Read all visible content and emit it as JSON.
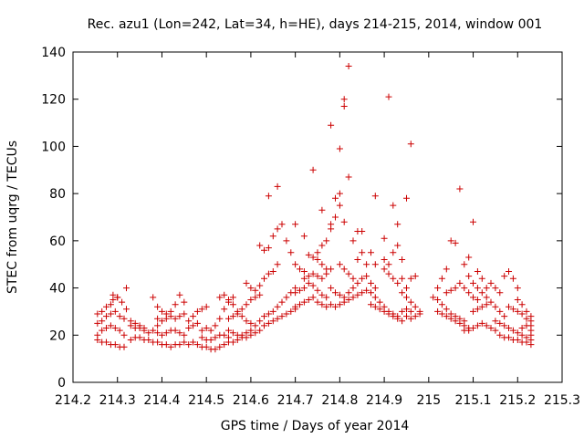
{
  "chart_data": {
    "type": "scatter",
    "title": "Rec. azu1 (Lon=242, Lat=34, h=HE), days 214-215, 2014, window 001",
    "xlabel": "GPS time / Days of year 2014",
    "ylabel": "STEC from uqrg / TECUs",
    "xlim": [
      214.2,
      215.3
    ],
    "ylim": [
      0,
      140
    ],
    "xticks": [
      214.2,
      214.3,
      214.4,
      214.5,
      214.6,
      214.7,
      214.8,
      214.9,
      215,
      215.1,
      215.2,
      215.3
    ],
    "xtick_labels": [
      "214.2",
      "214.3",
      "214.4",
      "214.5",
      "214.6",
      "214.7",
      "214.8",
      "214.9",
      "215",
      "215.1",
      "215.2",
      "215.3"
    ],
    "yticks": [
      0,
      20,
      40,
      60,
      80,
      100,
      120,
      140
    ],
    "ytick_labels": [
      "0",
      "20",
      "40",
      "60",
      "80",
      "100",
      "120",
      "140"
    ],
    "grid": false,
    "marker": "+",
    "color": "#cc0000",
    "points": [
      [
        214.255,
        29
      ],
      [
        214.265,
        30
      ],
      [
        214.275,
        32
      ],
      [
        214.285,
        33
      ],
      [
        214.29,
        35
      ],
      [
        214.3,
        36
      ],
      [
        214.31,
        34
      ],
      [
        214.32,
        31
      ],
      [
        214.255,
        25
      ],
      [
        214.265,
        26
      ],
      [
        214.275,
        28
      ],
      [
        214.285,
        29
      ],
      [
        214.295,
        30
      ],
      [
        214.305,
        28
      ],
      [
        214.315,
        27
      ],
      [
        214.255,
        20
      ],
      [
        214.265,
        22
      ],
      [
        214.275,
        23
      ],
      [
        214.285,
        24
      ],
      [
        214.295,
        23
      ],
      [
        214.305,
        22
      ],
      [
        214.315,
        20
      ],
      [
        214.255,
        18
      ],
      [
        214.265,
        17
      ],
      [
        214.275,
        17
      ],
      [
        214.285,
        16
      ],
      [
        214.295,
        16
      ],
      [
        214.305,
        15
      ],
      [
        214.315,
        15
      ],
      [
        214.32,
        40
      ],
      [
        214.29,
        37
      ],
      [
        214.3,
        36
      ],
      [
        214.33,
        24
      ],
      [
        214.34,
        23
      ],
      [
        214.35,
        23
      ],
      [
        214.36,
        22
      ],
      [
        214.37,
        21
      ],
      [
        214.38,
        22
      ],
      [
        214.39,
        24
      ],
      [
        214.33,
        18
      ],
      [
        214.34,
        19
      ],
      [
        214.35,
        19
      ],
      [
        214.36,
        18
      ],
      [
        214.37,
        18
      ],
      [
        214.38,
        17
      ],
      [
        214.39,
        17
      ],
      [
        214.33,
        26
      ],
      [
        214.34,
        25
      ],
      [
        214.35,
        24
      ],
      [
        214.36,
        23
      ],
      [
        214.38,
        36
      ],
      [
        214.39,
        32
      ],
      [
        214.4,
        30
      ],
      [
        214.41,
        29
      ],
      [
        214.42,
        30
      ],
      [
        214.43,
        33
      ],
      [
        214.44,
        37
      ],
      [
        214.45,
        34
      ],
      [
        214.39,
        27
      ],
      [
        214.4,
        26
      ],
      [
        214.41,
        27
      ],
      [
        214.42,
        28
      ],
      [
        214.43,
        27
      ],
      [
        214.44,
        28
      ],
      [
        214.45,
        29
      ],
      [
        214.39,
        21
      ],
      [
        214.4,
        20
      ],
      [
        214.41,
        21
      ],
      [
        214.42,
        22
      ],
      [
        214.43,
        22
      ],
      [
        214.44,
        21
      ],
      [
        214.45,
        20
      ],
      [
        214.4,
        16
      ],
      [
        214.41,
        16
      ],
      [
        214.42,
        15
      ],
      [
        214.43,
        16
      ],
      [
        214.44,
        16
      ],
      [
        214.45,
        17
      ],
      [
        214.46,
        16
      ],
      [
        214.46,
        26
      ],
      [
        214.47,
        28
      ],
      [
        214.48,
        30
      ],
      [
        214.49,
        31
      ],
      [
        214.5,
        32
      ],
      [
        214.46,
        23
      ],
      [
        214.47,
        24
      ],
      [
        214.48,
        25
      ],
      [
        214.49,
        22
      ],
      [
        214.5,
        23
      ],
      [
        214.51,
        22
      ],
      [
        214.52,
        24
      ],
      [
        214.53,
        27
      ],
      [
        214.54,
        31
      ],
      [
        214.55,
        34
      ],
      [
        214.56,
        36
      ],
      [
        214.47,
        17
      ],
      [
        214.48,
        16
      ],
      [
        214.49,
        15
      ],
      [
        214.5,
        15
      ],
      [
        214.51,
        14
      ],
      [
        214.52,
        14
      ],
      [
        214.53,
        15
      ],
      [
        214.54,
        16
      ],
      [
        214.49,
        19
      ],
      [
        214.5,
        18
      ],
      [
        214.51,
        18
      ],
      [
        214.52,
        19
      ],
      [
        214.53,
        20
      ],
      [
        214.54,
        20
      ],
      [
        214.55,
        19
      ],
      [
        214.53,
        36
      ],
      [
        214.54,
        37
      ],
      [
        214.55,
        35
      ],
      [
        214.56,
        33
      ],
      [
        214.57,
        30
      ],
      [
        214.58,
        28
      ],
      [
        214.59,
        26
      ],
      [
        214.6,
        25
      ],
      [
        214.55,
        27
      ],
      [
        214.56,
        28
      ],
      [
        214.57,
        29
      ],
      [
        214.58,
        31
      ],
      [
        214.59,
        33
      ],
      [
        214.6,
        35
      ],
      [
        214.61,
        36
      ],
      [
        214.62,
        37
      ],
      [
        214.55,
        22
      ],
      [
        214.56,
        21
      ],
      [
        214.57,
        20
      ],
      [
        214.58,
        20
      ],
      [
        214.59,
        21
      ],
      [
        214.6,
        22
      ],
      [
        214.61,
        24
      ],
      [
        214.62,
        26
      ],
      [
        214.55,
        17
      ],
      [
        214.56,
        17
      ],
      [
        214.57,
        18
      ],
      [
        214.58,
        19
      ],
      [
        214.59,
        19
      ],
      [
        214.6,
        20
      ],
      [
        214.61,
        21
      ],
      [
        214.62,
        22
      ],
      [
        214.59,
        42
      ],
      [
        214.6,
        40
      ],
      [
        214.61,
        39
      ],
      [
        214.62,
        41
      ],
      [
        214.63,
        44
      ],
      [
        214.64,
        46
      ],
      [
        214.65,
        47
      ],
      [
        214.66,
        50
      ],
      [
        214.63,
        28
      ],
      [
        214.64,
        29
      ],
      [
        214.65,
        30
      ],
      [
        214.66,
        32
      ],
      [
        214.67,
        34
      ],
      [
        214.68,
        36
      ],
      [
        214.69,
        38
      ],
      [
        214.7,
        40
      ],
      [
        214.63,
        24
      ],
      [
        214.64,
        25
      ],
      [
        214.65,
        26
      ],
      [
        214.66,
        27
      ],
      [
        214.67,
        28
      ],
      [
        214.68,
        29
      ],
      [
        214.69,
        30
      ],
      [
        214.7,
        31
      ],
      [
        214.62,
        58
      ],
      [
        214.63,
        56
      ],
      [
        214.64,
        57
      ],
      [
        214.65,
        62
      ],
      [
        214.66,
        65
      ],
      [
        214.67,
        67
      ],
      [
        214.68,
        60
      ],
      [
        214.69,
        55
      ],
      [
        214.64,
        79
      ],
      [
        214.66,
        83
      ],
      [
        214.7,
        67
      ],
      [
        214.72,
        62
      ],
      [
        214.74,
        90
      ],
      [
        214.76,
        73
      ],
      [
        214.78,
        109
      ],
      [
        214.7,
        50
      ],
      [
        214.71,
        48
      ],
      [
        214.72,
        47
      ],
      [
        214.73,
        54
      ],
      [
        214.74,
        53
      ],
      [
        214.75,
        52
      ],
      [
        214.76,
        50
      ],
      [
        214.77,
        48
      ],
      [
        214.7,
        38
      ],
      [
        214.71,
        39
      ],
      [
        214.72,
        40
      ],
      [
        214.73,
        42
      ],
      [
        214.74,
        41
      ],
      [
        214.75,
        39
      ],
      [
        214.76,
        37
      ],
      [
        214.77,
        36
      ],
      [
        214.7,
        32
      ],
      [
        214.71,
        33
      ],
      [
        214.72,
        34
      ],
      [
        214.73,
        35
      ],
      [
        214.74,
        36
      ],
      [
        214.75,
        34
      ],
      [
        214.76,
        33
      ],
      [
        214.77,
        32
      ],
      [
        214.72,
        44
      ],
      [
        214.73,
        45
      ],
      [
        214.74,
        46
      ],
      [
        214.75,
        45
      ],
      [
        214.76,
        44
      ],
      [
        214.77,
        46
      ],
      [
        214.78,
        48
      ],
      [
        214.75,
        55
      ],
      [
        214.76,
        58
      ],
      [
        214.77,
        60
      ],
      [
        214.78,
        65
      ],
      [
        214.79,
        70
      ],
      [
        214.8,
        80
      ],
      [
        214.79,
        78
      ],
      [
        214.78,
        67
      ],
      [
        214.8,
        99
      ],
      [
        214.81,
        117
      ],
      [
        214.81,
        120
      ],
      [
        214.82,
        134
      ],
      [
        214.82,
        87
      ],
      [
        214.8,
        75
      ],
      [
        214.81,
        68
      ],
      [
        214.78,
        40
      ],
      [
        214.79,
        38
      ],
      [
        214.8,
        37
      ],
      [
        214.81,
        36
      ],
      [
        214.82,
        38
      ],
      [
        214.83,
        40
      ],
      [
        214.84,
        42
      ],
      [
        214.85,
        44
      ],
      [
        214.78,
        33
      ],
      [
        214.79,
        32
      ],
      [
        214.8,
        33
      ],
      [
        214.81,
        34
      ],
      [
        214.82,
        35
      ],
      [
        214.83,
        36
      ],
      [
        214.84,
        37
      ],
      [
        214.85,
        38
      ],
      [
        214.8,
        50
      ],
      [
        214.81,
        48
      ],
      [
        214.82,
        46
      ],
      [
        214.83,
        44
      ],
      [
        214.84,
        52
      ],
      [
        214.85,
        55
      ],
      [
        214.86,
        50
      ],
      [
        214.83,
        60
      ],
      [
        214.84,
        64
      ],
      [
        214.85,
        64
      ],
      [
        214.87,
        55
      ],
      [
        214.88,
        50
      ],
      [
        214.86,
        45
      ],
      [
        214.87,
        42
      ],
      [
        214.88,
        40
      ],
      [
        214.86,
        39
      ],
      [
        214.87,
        38
      ],
      [
        214.88,
        36
      ],
      [
        214.89,
        34
      ],
      [
        214.9,
        32
      ],
      [
        214.91,
        30
      ],
      [
        214.92,
        29
      ],
      [
        214.93,
        28
      ],
      [
        214.87,
        33
      ],
      [
        214.88,
        32
      ],
      [
        214.89,
        31
      ],
      [
        214.9,
        30
      ],
      [
        214.91,
        29
      ],
      [
        214.92,
        28
      ],
      [
        214.93,
        27
      ],
      [
        214.94,
        26
      ],
      [
        214.88,
        79
      ],
      [
        214.9,
        61
      ],
      [
        214.91,
        121
      ],
      [
        214.92,
        75
      ],
      [
        214.93,
        67
      ],
      [
        214.95,
        78
      ],
      [
        214.96,
        101
      ],
      [
        214.9,
        48
      ],
      [
        214.91,
        46
      ],
      [
        214.92,
        44
      ],
      [
        214.93,
        42
      ],
      [
        214.94,
        44
      ],
      [
        214.95,
        40
      ],
      [
        214.96,
        44
      ],
      [
        214.97,
        45
      ],
      [
        214.92,
        55
      ],
      [
        214.93,
        58
      ],
      [
        214.94,
        52
      ],
      [
        214.9,
        52
      ],
      [
        214.91,
        50
      ],
      [
        214.94,
        38
      ],
      [
        214.95,
        36
      ],
      [
        214.96,
        34
      ],
      [
        214.97,
        32
      ],
      [
        214.98,
        30
      ],
      [
        214.95,
        28
      ],
      [
        214.96,
        27
      ],
      [
        214.97,
        28
      ],
      [
        214.98,
        29
      ],
      [
        214.94,
        30
      ],
      [
        214.95,
        31
      ],
      [
        214.96,
        30
      ],
      [
        215.01,
        36
      ],
      [
        215.02,
        35
      ],
      [
        215.03,
        33
      ],
      [
        215.04,
        31
      ],
      [
        215.05,
        29
      ],
      [
        215.06,
        28
      ],
      [
        215.07,
        27
      ],
      [
        215.08,
        26
      ],
      [
        215.02,
        40
      ],
      [
        215.03,
        44
      ],
      [
        215.04,
        48
      ],
      [
        215.05,
        60
      ],
      [
        215.06,
        59
      ],
      [
        215.07,
        82
      ],
      [
        215.08,
        50
      ],
      [
        215.09,
        45
      ],
      [
        215.02,
        30
      ],
      [
        215.03,
        29
      ],
      [
        215.04,
        28
      ],
      [
        215.05,
        27
      ],
      [
        215.06,
        26
      ],
      [
        215.07,
        25
      ],
      [
        215.08,
        24
      ],
      [
        215.09,
        23
      ],
      [
        215.04,
        38
      ],
      [
        215.05,
        39
      ],
      [
        215.06,
        40
      ],
      [
        215.07,
        42
      ],
      [
        215.08,
        40
      ],
      [
        215.09,
        38
      ],
      [
        215.1,
        36
      ],
      [
        215.11,
        35
      ],
      [
        215.09,
        53
      ],
      [
        215.1,
        68
      ],
      [
        215.11,
        47
      ],
      [
        215.12,
        44
      ],
      [
        215.1,
        42
      ],
      [
        215.11,
        40
      ],
      [
        215.12,
        38
      ],
      [
        215.13,
        36
      ],
      [
        215.08,
        22
      ],
      [
        215.09,
        22
      ],
      [
        215.1,
        23
      ],
      [
        215.11,
        24
      ],
      [
        215.12,
        25
      ],
      [
        215.13,
        24
      ],
      [
        215.14,
        23
      ],
      [
        215.15,
        22
      ],
      [
        215.1,
        30
      ],
      [
        215.11,
        31
      ],
      [
        215.12,
        32
      ],
      [
        215.13,
        33
      ],
      [
        215.14,
        34
      ],
      [
        215.15,
        32
      ],
      [
        215.16,
        30
      ],
      [
        215.17,
        28
      ],
      [
        215.13,
        40
      ],
      [
        215.14,
        42
      ],
      [
        215.15,
        40
      ],
      [
        215.16,
        38
      ],
      [
        215.17,
        45
      ],
      [
        215.18,
        47
      ],
      [
        215.19,
        44
      ],
      [
        215.2,
        40
      ],
      [
        215.15,
        26
      ],
      [
        215.16,
        25
      ],
      [
        215.17,
        24
      ],
      [
        215.18,
        23
      ],
      [
        215.19,
        22
      ],
      [
        215.2,
        21
      ],
      [
        215.21,
        20
      ],
      [
        215.22,
        19
      ],
      [
        215.16,
        20
      ],
      [
        215.17,
        19
      ],
      [
        215.18,
        19
      ],
      [
        215.19,
        18
      ],
      [
        215.2,
        18
      ],
      [
        215.21,
        17
      ],
      [
        215.22,
        17
      ],
      [
        215.23,
        16
      ],
      [
        215.18,
        32
      ],
      [
        215.19,
        31
      ],
      [
        215.2,
        30
      ],
      [
        215.21,
        29
      ],
      [
        215.22,
        27
      ],
      [
        215.23,
        26
      ],
      [
        215.23,
        24
      ],
      [
        215.23,
        22
      ],
      [
        215.2,
        35
      ],
      [
        215.21,
        33
      ],
      [
        215.22,
        30
      ],
      [
        215.23,
        28
      ],
      [
        215.22,
        24
      ],
      [
        215.21,
        23
      ],
      [
        215.23,
        20
      ],
      [
        215.23,
        18
      ]
    ]
  }
}
